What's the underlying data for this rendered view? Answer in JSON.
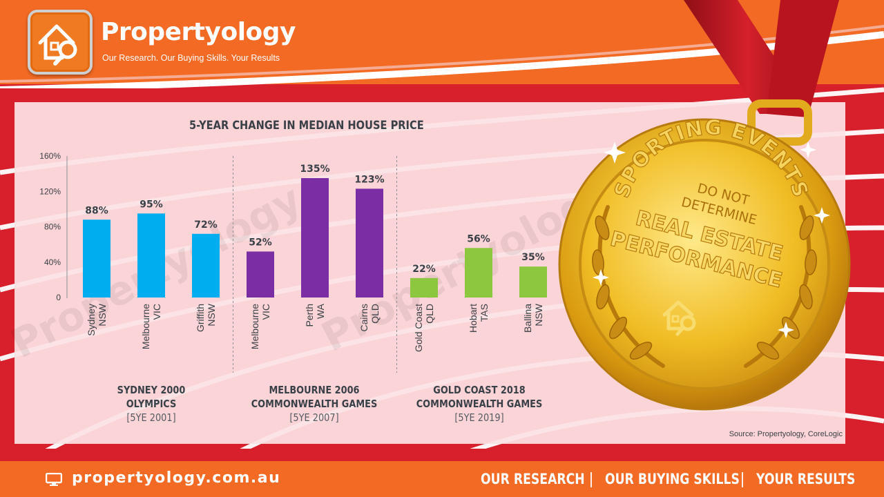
{
  "brand": {
    "name": "Propertyology",
    "tagline": "Our Research. Our Buying Skills. Your Results"
  },
  "colors": {
    "orange": "#f26a23",
    "red": "#d8202c",
    "sydney_olympics": "#00aeef",
    "melbourne_games": "#7b2ea3",
    "gold_coast_games": "#8dc63f",
    "gold": "#e7b416"
  },
  "chart_data": {
    "type": "bar",
    "title": "5-YEAR CHANGE IN MEDIAN HOUSE PRICE",
    "ylim": [
      0,
      160
    ],
    "yticks": [
      "0",
      "40%",
      "80%",
      "120%",
      "160%"
    ],
    "ytick_values": [
      0,
      40,
      80,
      120,
      160
    ],
    "grid": false,
    "groups": [
      {
        "event": "SYDNEY 2000 OLYMPICS",
        "event_lines": [
          "SYDNEY 2000",
          "OLYMPICS"
        ],
        "period": "[5YE 2001]",
        "color": "#00aeef",
        "bars": [
          {
            "name": "Sydney",
            "state": "NSW",
            "value": 88,
            "label": "88%"
          },
          {
            "name": "Melbourne",
            "state": "VIC",
            "value": 95,
            "label": "95%"
          },
          {
            "name": "Griffith",
            "state": "NSW",
            "value": 72,
            "label": "72%"
          }
        ]
      },
      {
        "event": "MELBOURNE 2006 COMMONWEALTH GAMES",
        "event_lines": [
          "MELBOURNE 2006",
          "COMMONWEALTH GAMES"
        ],
        "period": "[5YE 2007]",
        "color": "#7b2ea3",
        "bars": [
          {
            "name": "Melbourne",
            "state": "VIC",
            "value": 52,
            "label": "52%"
          },
          {
            "name": "Perth",
            "state": "WA",
            "value": 135,
            "label": "135%"
          },
          {
            "name": "Cairns",
            "state": "QLD",
            "value": 123,
            "label": "123%"
          }
        ]
      },
      {
        "event": "GOLD COAST 2018 COMMONWEALTH GAMES",
        "event_lines": [
          "GOLD COAST 2018",
          "COMMONWEALTH GAMES"
        ],
        "period": "[5YE 2019]",
        "color": "#8dc63f",
        "bars": [
          {
            "name": "Gold Coast",
            "state": "QLD",
            "value": 22,
            "label": "22%"
          },
          {
            "name": "Hobart",
            "state": "TAS",
            "value": 56,
            "label": "56%"
          },
          {
            "name": "Ballina",
            "state": "NSW",
            "value": 35,
            "label": "35%"
          }
        ]
      }
    ],
    "source": "Source: Propertyology, CoreLogic"
  },
  "medal": {
    "arc_text": "SPORTING EVENTS",
    "line1": "DO NOT",
    "line2": "DETERMINE",
    "line3": "REAL ESTATE",
    "line4": "PERFORMANCE"
  },
  "watermark": "Propertyology",
  "footer": {
    "url": "propertyology.com.au",
    "icon": "monitor-icon",
    "nav": [
      "OUR RESEARCH",
      "OUR BUYING SKILLS",
      "YOUR RESULTS"
    ]
  }
}
